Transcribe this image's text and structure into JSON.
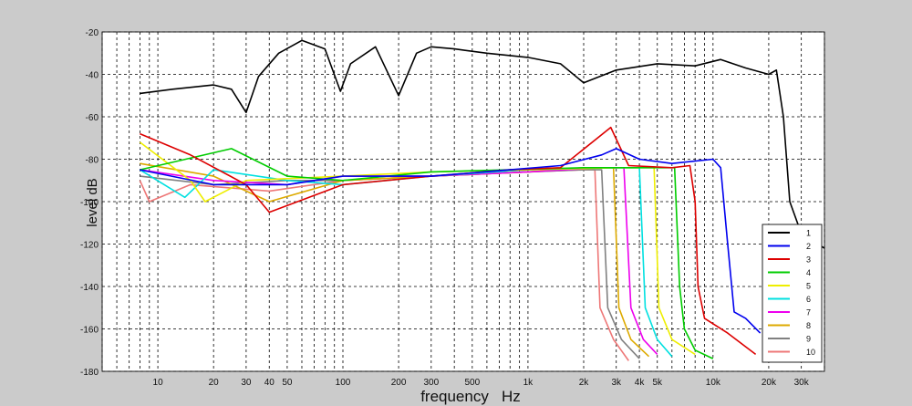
{
  "chart_data": {
    "type": "line",
    "xlabel": "frequency   Hz",
    "ylabel": "level dB",
    "xscale": "log",
    "xlim": [
      5,
      40000
    ],
    "ylim": [
      -180,
      -20
    ],
    "grid": true,
    "legend_position": "bottom-right",
    "x_ticks": [
      {
        "value": 10,
        "label": "10"
      },
      {
        "value": 20,
        "label": "20"
      },
      {
        "value": 30,
        "label": "30"
      },
      {
        "value": 40,
        "label": "40"
      },
      {
        "value": 50,
        "label": "50"
      },
      {
        "value": 100,
        "label": "100"
      },
      {
        "value": 200,
        "label": "200"
      },
      {
        "value": 300,
        "label": "300"
      },
      {
        "value": 500,
        "label": "500"
      },
      {
        "value": 1000,
        "label": "1k"
      },
      {
        "value": 2000,
        "label": "2k"
      },
      {
        "value": 3000,
        "label": "3k"
      },
      {
        "value": 4000,
        "label": "4k"
      },
      {
        "value": 5000,
        "label": "5k"
      },
      {
        "value": 10000,
        "label": "10k"
      },
      {
        "value": 20000,
        "label": "20k"
      },
      {
        "value": 30000,
        "label": "30k"
      }
    ],
    "y_ticks": [
      -20,
      -40,
      -60,
      -80,
      -100,
      -120,
      -140,
      -160,
      -180
    ],
    "series": [
      {
        "name": "1",
        "color": "#000000",
        "points": [
          [
            8,
            -49
          ],
          [
            12,
            -47
          ],
          [
            20,
            -45
          ],
          [
            25,
            -47
          ],
          [
            30,
            -58
          ],
          [
            35,
            -41
          ],
          [
            45,
            -30
          ],
          [
            60,
            -24
          ],
          [
            80,
            -28
          ],
          [
            97,
            -48
          ],
          [
            110,
            -35
          ],
          [
            150,
            -27
          ],
          [
            200,
            -50
          ],
          [
            250,
            -30
          ],
          [
            300,
            -27
          ],
          [
            400,
            -28
          ],
          [
            600,
            -30
          ],
          [
            1000,
            -32
          ],
          [
            1500,
            -35
          ],
          [
            2000,
            -44
          ],
          [
            3000,
            -38
          ],
          [
            5000,
            -35
          ],
          [
            8000,
            -36
          ],
          [
            11000,
            -33
          ],
          [
            15000,
            -37
          ],
          [
            20000,
            -40
          ],
          [
            22000,
            -38
          ],
          [
            24000,
            -60
          ],
          [
            26000,
            -100
          ],
          [
            30000,
            -115
          ],
          [
            40000,
            -122
          ]
        ]
      },
      {
        "name": "2",
        "color": "#0000ee",
        "points": [
          [
            8,
            -85
          ],
          [
            20,
            -92
          ],
          [
            50,
            -92
          ],
          [
            100,
            -88
          ],
          [
            300,
            -88
          ],
          [
            800,
            -85
          ],
          [
            1500,
            -83
          ],
          [
            2500,
            -78
          ],
          [
            3000,
            -75
          ],
          [
            4000,
            -80
          ],
          [
            6000,
            -82
          ],
          [
            10000,
            -80
          ],
          [
            11000,
            -84
          ],
          [
            12000,
            -120
          ],
          [
            13000,
            -152
          ],
          [
            15000,
            -155
          ],
          [
            18000,
            -162
          ]
        ]
      },
      {
        "name": "3",
        "color": "#dd0000",
        "points": [
          [
            8,
            -68
          ],
          [
            15,
            -78
          ],
          [
            30,
            -92
          ],
          [
            40,
            -105
          ],
          [
            100,
            -92
          ],
          [
            300,
            -88
          ],
          [
            800,
            -85
          ],
          [
            1500,
            -84
          ],
          [
            2800,
            -65
          ],
          [
            3500,
            -83
          ],
          [
            6000,
            -84
          ],
          [
            7500,
            -83
          ],
          [
            8000,
            -100
          ],
          [
            8300,
            -140
          ],
          [
            9000,
            -155
          ],
          [
            12000,
            -162
          ],
          [
            17000,
            -172
          ]
        ]
      },
      {
        "name": "4",
        "color": "#00cc00",
        "points": [
          [
            8,
            -85
          ],
          [
            25,
            -75
          ],
          [
            50,
            -88
          ],
          [
            100,
            -90
          ],
          [
            300,
            -86
          ],
          [
            800,
            -85
          ],
          [
            2000,
            -84
          ],
          [
            5000,
            -84
          ],
          [
            6200,
            -84
          ],
          [
            6600,
            -140
          ],
          [
            7000,
            -160
          ],
          [
            8000,
            -170
          ],
          [
            10000,
            -174
          ]
        ]
      },
      {
        "name": "5",
        "color": "#eeee00",
        "points": [
          [
            8,
            -72
          ],
          [
            15,
            -90
          ],
          [
            18,
            -100
          ],
          [
            30,
            -90
          ],
          [
            100,
            -88
          ],
          [
            300,
            -86
          ],
          [
            1000,
            -85
          ],
          [
            3000,
            -84
          ],
          [
            4800,
            -84
          ],
          [
            5100,
            -150
          ],
          [
            6000,
            -165
          ],
          [
            8000,
            -172
          ]
        ]
      },
      {
        "name": "6",
        "color": "#00e0e0",
        "points": [
          [
            8,
            -85
          ],
          [
            14,
            -98
          ],
          [
            20,
            -85
          ],
          [
            50,
            -90
          ],
          [
            100,
            -92
          ],
          [
            300,
            -88
          ],
          [
            1000,
            -85
          ],
          [
            3000,
            -84
          ],
          [
            4000,
            -84
          ],
          [
            4300,
            -150
          ],
          [
            5000,
            -165
          ],
          [
            6000,
            -173
          ]
        ]
      },
      {
        "name": "7",
        "color": "#ee00ee",
        "points": [
          [
            8,
            -85
          ],
          [
            20,
            -90
          ],
          [
            50,
            -92
          ],
          [
            100,
            -88
          ],
          [
            300,
            -88
          ],
          [
            1000,
            -86
          ],
          [
            2500,
            -84
          ],
          [
            3300,
            -84
          ],
          [
            3600,
            -150
          ],
          [
            4200,
            -165
          ],
          [
            5000,
            -172
          ]
        ]
      },
      {
        "name": "8",
        "color": "#ddaa00",
        "points": [
          [
            8,
            -82
          ],
          [
            20,
            -88
          ],
          [
            40,
            -100
          ],
          [
            100,
            -90
          ],
          [
            300,
            -88
          ],
          [
            1000,
            -86
          ],
          [
            2000,
            -84
          ],
          [
            2900,
            -84
          ],
          [
            3100,
            -150
          ],
          [
            3600,
            -165
          ],
          [
            4500,
            -173
          ]
        ]
      },
      {
        "name": "9",
        "color": "#808080",
        "points": [
          [
            8,
            -88
          ],
          [
            20,
            -92
          ],
          [
            50,
            -90
          ],
          [
            100,
            -90
          ],
          [
            300,
            -88
          ],
          [
            1000,
            -86
          ],
          [
            2000,
            -85
          ],
          [
            2500,
            -85
          ],
          [
            2700,
            -150
          ],
          [
            3200,
            -165
          ],
          [
            4000,
            -174
          ]
        ]
      },
      {
        "name": "10",
        "color": "#ee7777",
        "points": [
          [
            8,
            -90
          ],
          [
            9,
            -100
          ],
          [
            15,
            -92
          ],
          [
            40,
            -95
          ],
          [
            100,
            -90
          ],
          [
            300,
            -88
          ],
          [
            1000,
            -86
          ],
          [
            2000,
            -85
          ],
          [
            2300,
            -85
          ],
          [
            2450,
            -150
          ],
          [
            2900,
            -165
          ],
          [
            3500,
            -175
          ]
        ]
      }
    ]
  }
}
